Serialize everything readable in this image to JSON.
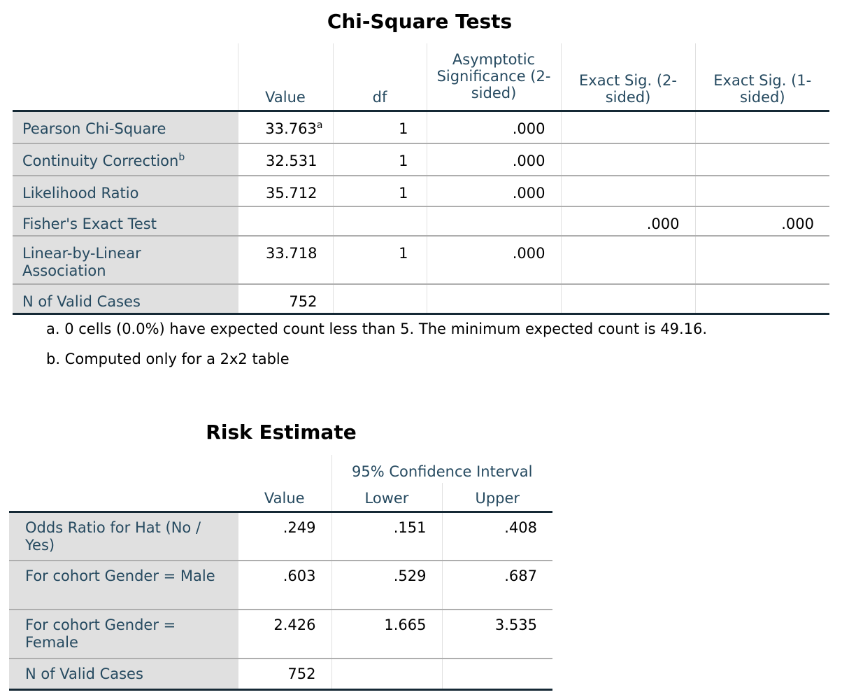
{
  "chi_square": {
    "title": "Chi-Square Tests",
    "headers": [
      "Value",
      "df",
      "Asymptotic Significance (2-sided)",
      "Exact Sig. (2-sided)",
      "Exact Sig. (1-sided)"
    ],
    "rows": [
      {
        "label": "Pearson Chi-Square",
        "label_sup": "",
        "value": "33.763",
        "value_sup": "a",
        "df": "1",
        "asym": ".000",
        "exact2": "",
        "exact1": ""
      },
      {
        "label": "Continuity Correction",
        "label_sup": "b",
        "value": "32.531",
        "value_sup": "",
        "df": "1",
        "asym": ".000",
        "exact2": "",
        "exact1": ""
      },
      {
        "label": "Likelihood Ratio",
        "label_sup": "",
        "value": "35.712",
        "value_sup": "",
        "df": "1",
        "asym": ".000",
        "exact2": "",
        "exact1": ""
      },
      {
        "label": "Fisher's Exact Test",
        "label_sup": "",
        "value": "",
        "value_sup": "",
        "df": "",
        "asym": "",
        "exact2": ".000",
        "exact1": ".000"
      },
      {
        "label": "Linear-by-Linear Association",
        "label_sup": "",
        "value": "33.718",
        "value_sup": "",
        "df": "1",
        "asym": ".000",
        "exact2": "",
        "exact1": ""
      },
      {
        "label": "N of Valid Cases",
        "label_sup": "",
        "value": "752",
        "value_sup": "",
        "df": "",
        "asym": "",
        "exact2": "",
        "exact1": ""
      }
    ],
    "footnotes": [
      "a. 0 cells (0.0%) have expected count less than 5. The minimum expected count is 49.16.",
      "b. Computed only for a 2x2 table"
    ]
  },
  "risk": {
    "title": "Risk Estimate",
    "ci_header": "95% Confidence Interval",
    "headers": [
      "Value",
      "Lower",
      "Upper"
    ],
    "rows": [
      {
        "label": "Odds Ratio for Hat (No / Yes)",
        "value": ".249",
        "lower": ".151",
        "upper": ".408"
      },
      {
        "label": "For cohort Gender = Male",
        "value": ".603",
        "lower": ".529",
        "upper": ".687"
      },
      {
        "label": "For cohort Gender = Female",
        "value": "2.426",
        "lower": "1.665",
        "upper": "3.535"
      },
      {
        "label": "N of Valid Cases",
        "value": "752",
        "lower": "",
        "upper": ""
      }
    ]
  }
}
